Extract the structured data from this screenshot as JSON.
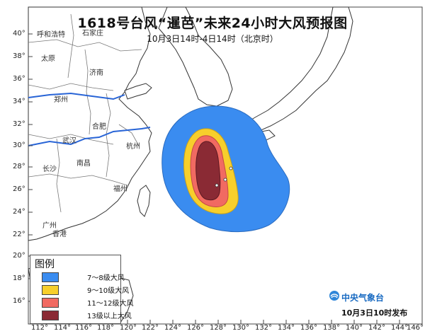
{
  "title": "1618号台风“暹芭”未来24小时大风预报图",
  "subtitle": "10月3日14时-4日14时（北京时）",
  "legend": {
    "title": "图例",
    "items": [
      {
        "label": "7～8级大风",
        "color": "#3a8cf0"
      },
      {
        "label": "9～10级大风",
        "color": "#f7cf2c"
      },
      {
        "label": "11～12级大风",
        "color": "#f16a62"
      },
      {
        "label": "13级以上大风",
        "color": "#8a2a34"
      }
    ]
  },
  "agency": "中央气象台",
  "issued": "10月3日10时发布",
  "latitudes": [
    "40°",
    "38°",
    "36°",
    "34°",
    "32°",
    "30°",
    "28°",
    "26°",
    "24°",
    "22°",
    "20°",
    "18°",
    "16°"
  ],
  "longitudes": [
    "112°",
    "114°",
    "116°",
    "118°",
    "120°",
    "122°",
    "124°",
    "126°",
    "128°",
    "130°",
    "132°",
    "134°",
    "136°",
    "138°",
    "140°",
    "142°",
    "144°",
    "146°"
  ],
  "places": [
    {
      "name": "呼和浩特"
    },
    {
      "name": "石家庄"
    },
    {
      "name": "太原"
    },
    {
      "name": "济南"
    },
    {
      "name": "郑州"
    },
    {
      "name": "合肥"
    },
    {
      "name": "武汉"
    },
    {
      "name": "杭州"
    },
    {
      "name": "长沙"
    },
    {
      "name": "南昌"
    },
    {
      "name": "福州"
    },
    {
      "name": "广州"
    },
    {
      "name": "香港"
    }
  ]
}
